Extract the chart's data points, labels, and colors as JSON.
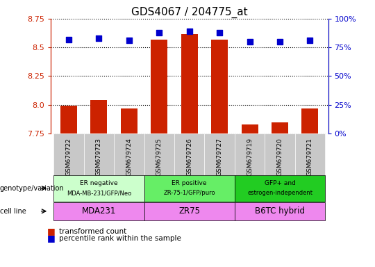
{
  "title": "GDS4067 / 204775_at",
  "samples": [
    "GSM679722",
    "GSM679723",
    "GSM679724",
    "GSM679725",
    "GSM679726",
    "GSM679727",
    "GSM679719",
    "GSM679720",
    "GSM679721"
  ],
  "transformed_counts": [
    7.995,
    8.04,
    7.965,
    8.565,
    8.615,
    8.565,
    7.83,
    7.845,
    7.965
  ],
  "percentile_ranks": [
    82,
    83,
    81,
    88,
    89,
    88,
    80,
    80,
    81
  ],
  "ylim_left": [
    7.75,
    8.75
  ],
  "ylim_right": [
    0,
    100
  ],
  "yticks_left": [
    7.75,
    8.0,
    8.25,
    8.5,
    8.75
  ],
  "yticks_right": [
    0,
    25,
    50,
    75,
    100
  ],
  "bar_color": "#cc2200",
  "dot_color": "#0000cc",
  "groups": [
    {
      "label_top": "ER negative",
      "label_bot": "MDA-MB-231/GFP/Neo",
      "cell_line": "MDA231",
      "indices": [
        0,
        1,
        2
      ],
      "geno_color": "#ccffcc",
      "cell_color": "#ee88ee"
    },
    {
      "label_top": "ER positive",
      "label_bot": "ZR-75-1/GFP/puro",
      "cell_line": "ZR75",
      "indices": [
        3,
        4,
        5
      ],
      "geno_color": "#66ee66",
      "cell_color": "#ee88ee"
    },
    {
      "label_top": "GFP+ and",
      "label_bot": "estrogen-independent",
      "cell_line": "B6TC hybrid",
      "indices": [
        6,
        7,
        8
      ],
      "geno_color": "#22cc22",
      "cell_color": "#ee88ee"
    }
  ],
  "left_axis_color": "#cc2200",
  "right_axis_color": "#0000cc",
  "bar_width": 0.55,
  "dot_size": 40,
  "baseline": 7.75,
  "xtick_bg": "#c8c8c8"
}
